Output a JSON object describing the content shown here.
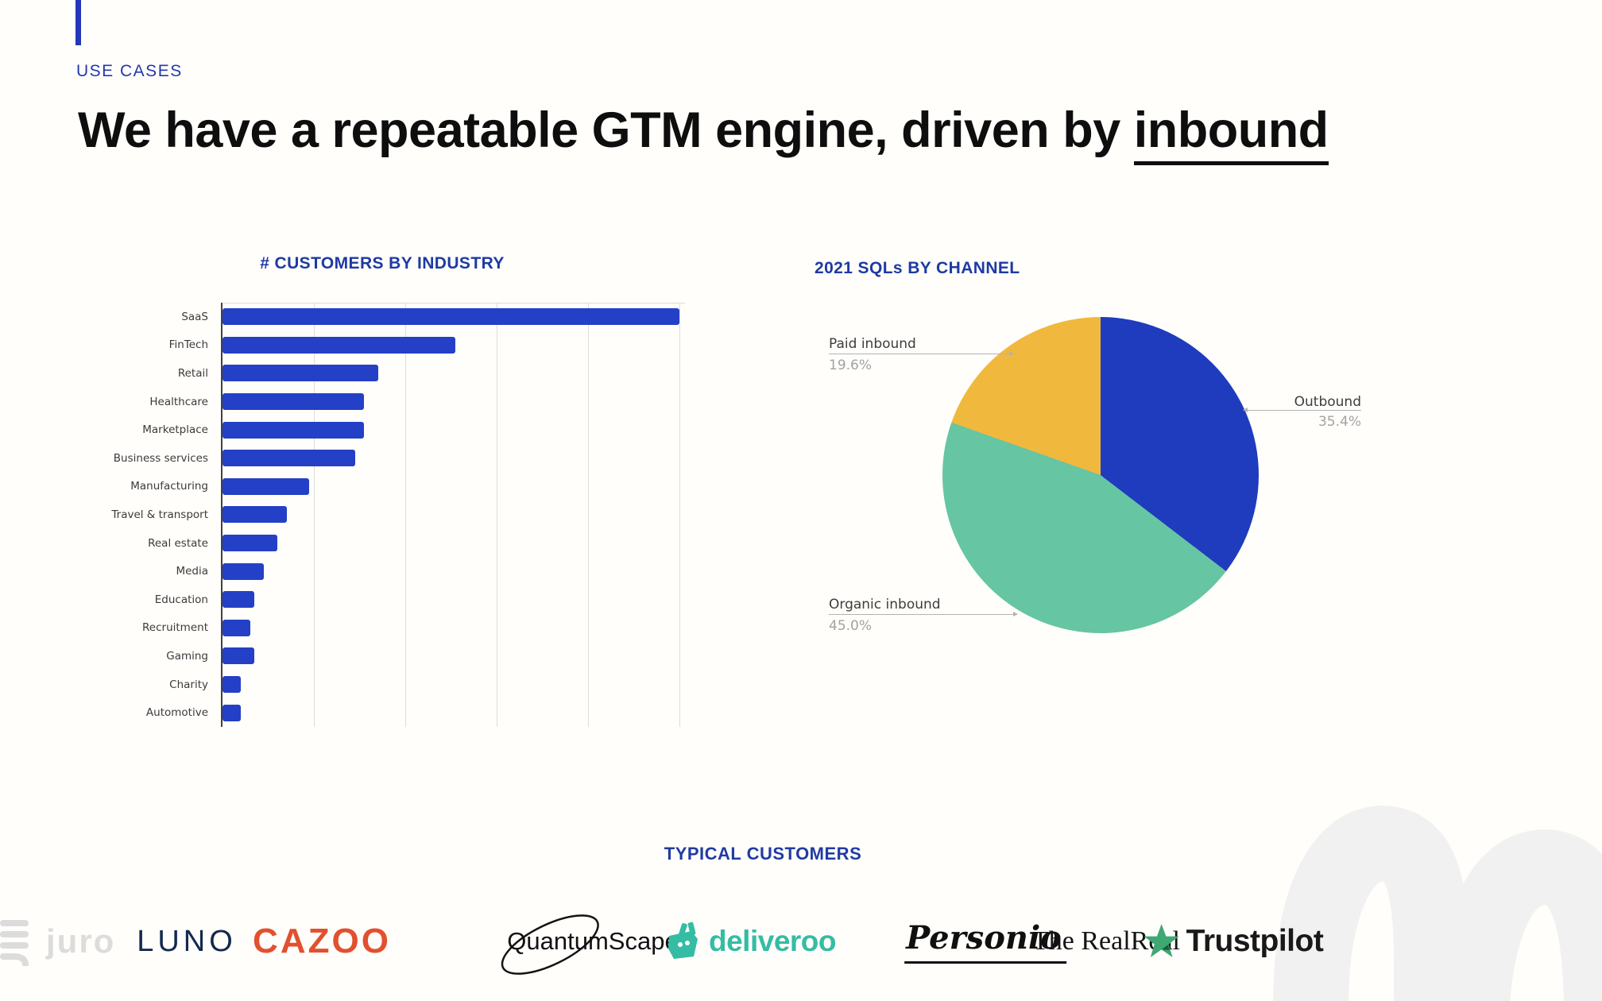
{
  "slide": {
    "eyebrow": "USE CASES",
    "title_prefix": "We have a repeatable GTM engine, driven by ",
    "title_underlined": "inbound"
  },
  "chart_data": [
    {
      "type": "bar",
      "orientation": "horizontal",
      "title": "# CUSTOMERS BY INDUSTRY",
      "categories": [
        "SaaS",
        "FinTech",
        "Retail",
        "Healthcare",
        "Marketplace",
        "Business services",
        "Manufacturing",
        "Travel & transport",
        "Real estate",
        "Media",
        "Education",
        "Recruitment",
        "Gaming",
        "Charity",
        "Automotive"
      ],
      "values": [
        100,
        51,
        34,
        31,
        31,
        29,
        19,
        14,
        12,
        9,
        7,
        6,
        7,
        4,
        4
      ],
      "xlabel": "",
      "ylabel": "",
      "xlim": [
        0,
        100
      ],
      "grid_step": 20,
      "grid": true,
      "axis_tick_labels_visible": false,
      "bar_color": "#2340c6",
      "note": "values estimated from gridlines; x-axis tick labels not shown in image"
    },
    {
      "type": "pie",
      "title": "2021 SQLs BY CHANNEL",
      "slices": [
        {
          "label": "Outbound",
          "pct_label": "35.4%",
          "value": 35.4,
          "color": "#1f3bbe"
        },
        {
          "label": "Organic inbound",
          "pct_label": "45.0%",
          "value": 45.0,
          "color": "#66c5a3"
        },
        {
          "label": "Paid inbound",
          "pct_label": "19.6%",
          "value": 19.6,
          "color": "#f1b83e"
        }
      ],
      "start_angle": "12 o'clock, clockwise",
      "legend_position": "outside callout labels with leader lines"
    }
  ],
  "customers": {
    "heading": "TYPICAL CUSTOMERS",
    "logos": [
      {
        "name": "juro",
        "text": "juro",
        "color": "#dcdcdc"
      },
      {
        "name": "luno",
        "text": "LUNO",
        "color": "#13294d"
      },
      {
        "name": "cazoo",
        "text": "CAZOO",
        "color": "#e2502e"
      },
      {
        "name": "quantumscape",
        "text": "QuantumScape",
        "color": "#121212"
      },
      {
        "name": "deliveroo",
        "text": "deliveroo",
        "color": "#35bca4"
      },
      {
        "name": "personio",
        "text": "Personio",
        "color": "#101010"
      },
      {
        "name": "therealreal",
        "text": "The RealReal",
        "color": "#141414"
      },
      {
        "name": "trustpilot",
        "text": "Trustpilot",
        "color": "#191919"
      }
    ]
  },
  "colors": {
    "accent_blue": "#2337b8",
    "heading_blue": "#1e3aa3",
    "bar_blue": "#2340c6",
    "pie_blue": "#1f3bbe",
    "pie_teal": "#66c5a3",
    "pie_yellow": "#f1b83e",
    "callout_text": "#3d3d3d",
    "callout_pct": "#a2a2a2",
    "trustpilot_green": "#3ea872",
    "watermark_gray": "#f1f1f1"
  }
}
